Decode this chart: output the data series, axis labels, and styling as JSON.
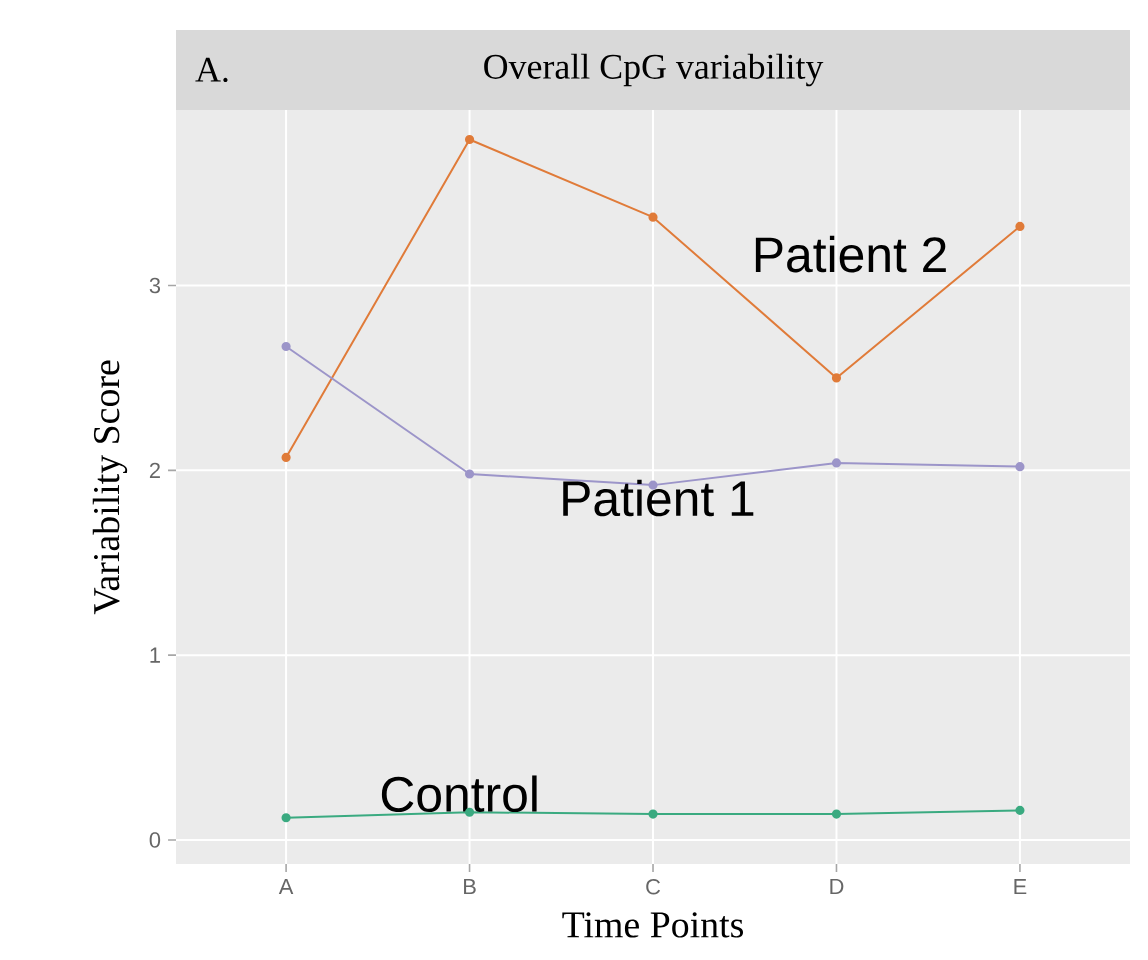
{
  "chart_data": {
    "type": "line",
    "title": "Overall CpG variability",
    "annotations": [
      "A."
    ],
    "xlabel": "Time Points",
    "ylabel": "Variability Score",
    "categories": [
      "A",
      "B",
      "C",
      "D",
      "E"
    ],
    "series": [
      {
        "name": "Patient 2",
        "color": "#e07b39",
        "values": [
          2.07,
          3.79,
          3.37,
          2.5,
          3.32
        ]
      },
      {
        "name": "Patient 1",
        "color": "#9c95c9",
        "values": [
          2.67,
          1.98,
          1.92,
          2.04,
          2.02
        ]
      },
      {
        "name": "Control",
        "color": "#3aaa80",
        "values": [
          0.12,
          0.15,
          0.14,
          0.14,
          0.16
        ]
      }
    ],
    "ylim": [
      -0.13,
      3.95
    ],
    "yticks": [
      0,
      1,
      2,
      3
    ],
    "grid": true,
    "marker": "circle",
    "line_style": "solid",
    "legend": false
  }
}
